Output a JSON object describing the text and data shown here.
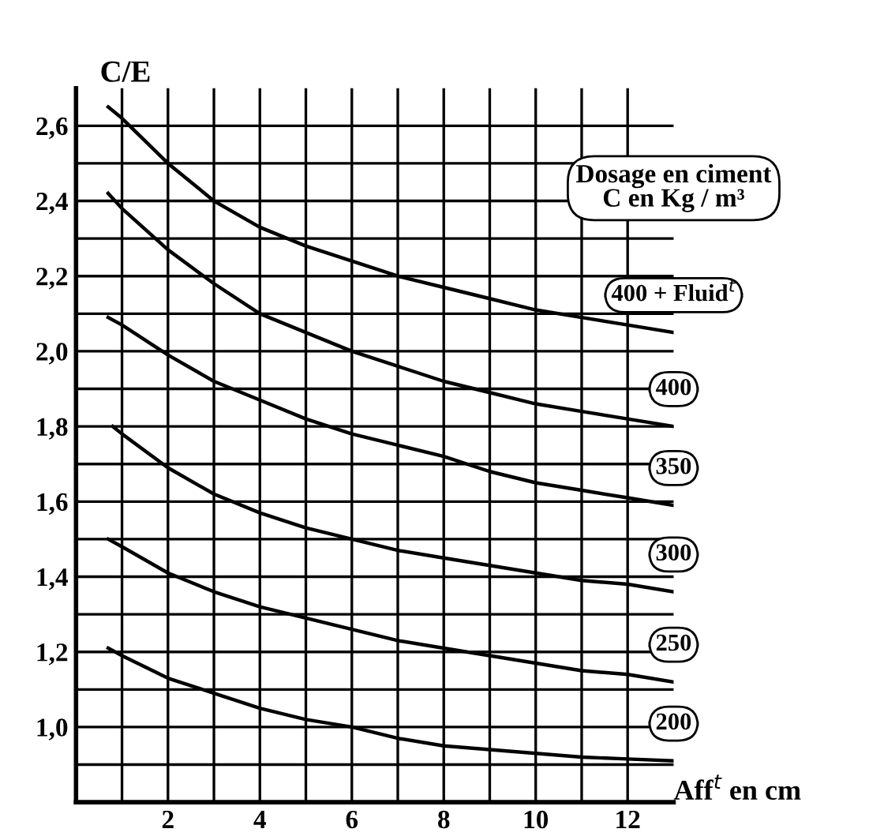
{
  "chart_data": {
    "type": "line",
    "xlabel": "Aff$^{t}$ en cm",
    "ylabel": "C/E",
    "legend_title": "Dosage en ciment\nC en Kg / m³",
    "series": [
      {
        "name": "400 + Fluid$^{t}$",
        "color": "#000000",
        "x": [
          0.7,
          1,
          2,
          3,
          4,
          5,
          6,
          7,
          8,
          9,
          10,
          11,
          12,
          13
        ],
        "values": [
          2.65,
          2.62,
          2.5,
          2.4,
          2.33,
          2.28,
          2.24,
          2.2,
          2.17,
          2.14,
          2.11,
          2.09,
          2.07,
          2.05
        ]
      },
      {
        "name": "400",
        "color": "#000000",
        "x": [
          0.7,
          1,
          2,
          3,
          4,
          5,
          6,
          7,
          8,
          9,
          10,
          11,
          12,
          13
        ],
        "values": [
          2.42,
          2.38,
          2.27,
          2.18,
          2.1,
          2.05,
          2.0,
          1.96,
          1.92,
          1.89,
          1.86,
          1.84,
          1.82,
          1.8
        ]
      },
      {
        "name": "350",
        "color": "#000000",
        "x": [
          0.7,
          1,
          2,
          3,
          4,
          5,
          6,
          7,
          8,
          9,
          10,
          11,
          12,
          13
        ],
        "values": [
          2.09,
          2.07,
          1.99,
          1.92,
          1.87,
          1.82,
          1.78,
          1.75,
          1.72,
          1.68,
          1.65,
          1.63,
          1.61,
          1.59
        ]
      },
      {
        "name": "300",
        "color": "#000000",
        "x": [
          0.8,
          1,
          2,
          3,
          4,
          5,
          6,
          7,
          8,
          9,
          10,
          11,
          12,
          13
        ],
        "values": [
          1.8,
          1.78,
          1.69,
          1.62,
          1.57,
          1.53,
          1.5,
          1.47,
          1.45,
          1.43,
          1.41,
          1.39,
          1.38,
          1.36
        ]
      },
      {
        "name": "250",
        "color": "#000000",
        "x": [
          0.7,
          1,
          2,
          3,
          4,
          5,
          6,
          7,
          8,
          9,
          10,
          11,
          12,
          13
        ],
        "values": [
          1.5,
          1.48,
          1.41,
          1.36,
          1.32,
          1.29,
          1.26,
          1.23,
          1.21,
          1.19,
          1.17,
          1.15,
          1.14,
          1.12
        ]
      },
      {
        "name": "200",
        "color": "#000000",
        "x": [
          0.7,
          1,
          2,
          3,
          4,
          5,
          6,
          7,
          8,
          9,
          10,
          11,
          12,
          13
        ],
        "values": [
          1.21,
          1.19,
          1.13,
          1.09,
          1.05,
          1.02,
          1.0,
          0.97,
          0.95,
          0.94,
          0.93,
          0.92,
          0.915,
          0.91
        ]
      }
    ],
    "xlim": [
      0,
      13
    ],
    "ylim": [
      0.8,
      2.7
    ],
    "xticks": [
      {
        "value": 1,
        "label": null
      },
      2,
      {
        "value": 3,
        "label": null
      },
      4,
      {
        "value": 5,
        "label": null
      },
      6,
      {
        "value": 7,
        "label": null
      },
      8,
      {
        "value": 9,
        "label": null
      },
      10,
      {
        "value": 11,
        "label": null
      },
      12
    ],
    "yticks": [
      {
        "value": 0.9,
        "label": null
      },
      {
        "value": 1.0,
        "label": "1,0"
      },
      {
        "value": 1.1,
        "label": null
      },
      {
        "value": 1.2,
        "label": "1,2"
      },
      {
        "value": 1.3,
        "label": null
      },
      {
        "value": 1.4,
        "label": "1,4"
      },
      {
        "value": 1.5,
        "label": null
      },
      {
        "value": 1.6,
        "label": "1,6"
      },
      {
        "value": 1.7,
        "label": null
      },
      {
        "value": 1.8,
        "label": "1,8"
      },
      {
        "value": 1.9,
        "label": null
      },
      {
        "value": 2.0,
        "label": "2,0"
      },
      {
        "value": 2.1,
        "label": null
      },
      {
        "value": 2.2,
        "label": "2,2"
      },
      {
        "value": 2.3,
        "label": null
      },
      {
        "value": 2.4,
        "label": "2,4"
      },
      {
        "value": 2.5,
        "label": null
      },
      {
        "value": 2.6,
        "label": "2,6"
      }
    ],
    "grid": true,
    "legend": false,
    "marker": "none",
    "line_style": "solid"
  }
}
